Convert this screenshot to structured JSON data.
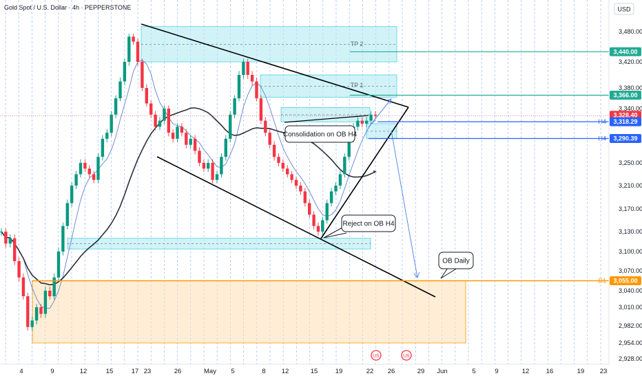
{
  "header": {
    "symbol_title": "Gold Spot / U.S. Dollar · 4h · PEPPERSTONE",
    "currency": "USD"
  },
  "colors": {
    "up": "#089981",
    "down": "#f23645",
    "teal": "#22ab94",
    "blue": "#2962ff",
    "zone_blue": "#b2ebf2",
    "zone_orange": "#ffe0b2",
    "orange": "#ff9800",
    "red": "#f23645",
    "grid_dash": "#2962ff"
  },
  "chart_data": {
    "type": "candlestick",
    "y_axis_ticks": [
      "3,480.00",
      "3,420.00",
      "3,380.00",
      "3,340.00",
      "3,250.00",
      "3,210.00",
      "3,170.00",
      "3,130.00",
      "3,100.00",
      "3,070.00",
      "3,040.00",
      "3,010.00",
      "2,982.00",
      "2,954.00",
      "2,928.00"
    ],
    "y_tick_values": [
      3480,
      3420,
      3380,
      3340,
      3250,
      3210,
      3170,
      3130,
      3100,
      3070,
      3040,
      3010,
      2982,
      2954,
      2928
    ],
    "x_axis_ticks": [
      "4",
      "9",
      "12",
      "15",
      "17",
      "23",
      "26",
      "May",
      "5",
      "8",
      "12",
      "15",
      "19",
      "22",
      "26",
      "29",
      "Jun",
      "5",
      "9",
      "12",
      "16",
      "19",
      "23"
    ],
    "ylim": [
      2920,
      3505
    ],
    "price_tags": [
      {
        "id": "tp2",
        "label": "3,440.00",
        "prefix": "",
        "value": 3440,
        "color": "#22ab94"
      },
      {
        "id": "tp1",
        "label": "3,366.00",
        "prefix": "",
        "value": 3366,
        "color": "#22ab94"
      },
      {
        "id": "last",
        "label": "3,328.40",
        "sub": "03:07:49",
        "prefix": "",
        "value": 3328.4,
        "color": "#f23645"
      },
      {
        "id": "h4a",
        "label": "3,318.29",
        "prefix": "H4",
        "value": 3318.29,
        "color": "#2962ff"
      },
      {
        "id": "h4b",
        "label": "3,290.39",
        "prefix": "H4",
        "value": 3290.39,
        "color": "#2962ff"
      },
      {
        "id": "d1",
        "label": "3,055.00",
        "prefix": "D1",
        "value": 3055,
        "color": "#ff9800"
      }
    ],
    "zones": [
      {
        "name": "TP 2",
        "top": 3490,
        "bottom": 3420,
        "color": "blue"
      },
      {
        "name": "TP 1",
        "top": 3400,
        "bottom": 3362,
        "color": "blue"
      },
      {
        "name": "",
        "top": 3342,
        "bottom": 3318,
        "color": "blue"
      },
      {
        "name": "",
        "top": 3315,
        "bottom": 3290,
        "color": "blue"
      },
      {
        "name": "",
        "top": 3120,
        "bottom": 3104,
        "color": "blue"
      },
      {
        "name": "",
        "top": 3055,
        "bottom": 2954,
        "color": "orange"
      }
    ],
    "callouts": [
      {
        "text": "Consolidation on OB H4"
      },
      {
        "text": "Reject on OB H4"
      },
      {
        "text": "OB Daily"
      }
    ],
    "close_series": [
      3130,
      3112,
      3120,
      3085,
      3060,
      3030,
      2980,
      2990,
      3010,
      3000,
      3040,
      3030,
      3060,
      3100,
      3140,
      3180,
      3210,
      3230,
      3250,
      3240,
      3230,
      3220,
      3260,
      3290,
      3300,
      3330,
      3360,
      3390,
      3420,
      3470,
      3460,
      3420,
      3380,
      3350,
      3330,
      3310,
      3320,
      3340,
      3300,
      3290,
      3310,
      3300,
      3280,
      3290,
      3270,
      3250,
      3240,
      3250,
      3220,
      3230,
      3260,
      3290,
      3330,
      3360,
      3400,
      3420,
      3400,
      3390,
      3360,
      3320,
      3300,
      3280,
      3260,
      3250,
      3240,
      3230,
      3220,
      3210,
      3200,
      3180,
      3160,
      3140,
      3130,
      3150,
      3180,
      3200,
      3210,
      3230,
      3260,
      3290,
      3310,
      3320,
      3315,
      3320,
      3330,
      3328
    ]
  }
}
